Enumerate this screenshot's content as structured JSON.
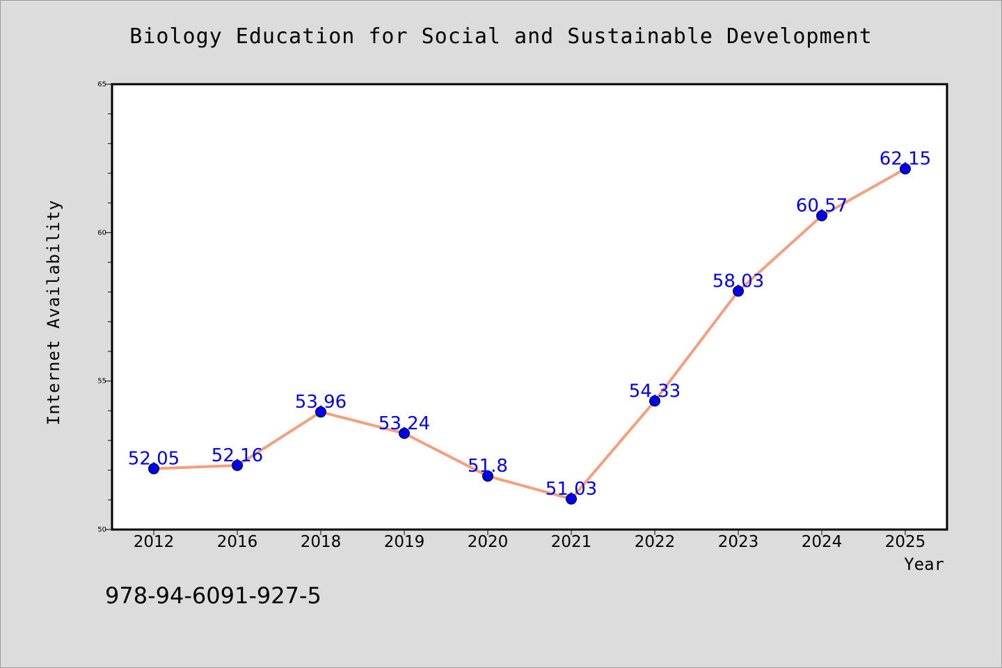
{
  "chart_data": {
    "type": "line",
    "title": "Biology Education for Social and Sustainable Development",
    "xlabel": "Year",
    "ylabel": "Internet Availability",
    "categories": [
      "2012",
      "2016",
      "2018",
      "2019",
      "2020",
      "2021",
      "2022",
      "2023",
      "2024",
      "2025"
    ],
    "values": [
      52.05,
      52.16,
      53.96,
      53.24,
      51.8,
      51.03,
      54.33,
      58.03,
      60.57,
      62.15
    ],
    "data_labels": [
      "52.05",
      "52.16",
      "53.96",
      "53.24",
      "51.8",
      "51.03",
      "54.33",
      "58.03",
      "60.57",
      "62.15"
    ],
    "ylim": [
      50,
      65
    ],
    "yticks": [
      50,
      55,
      60,
      65
    ],
    "grid": false,
    "line_color": "#f4a07f",
    "marker_color": "#0000ee",
    "label_color": "#0000ee"
  },
  "annotation": "978-94-6091-927-5"
}
